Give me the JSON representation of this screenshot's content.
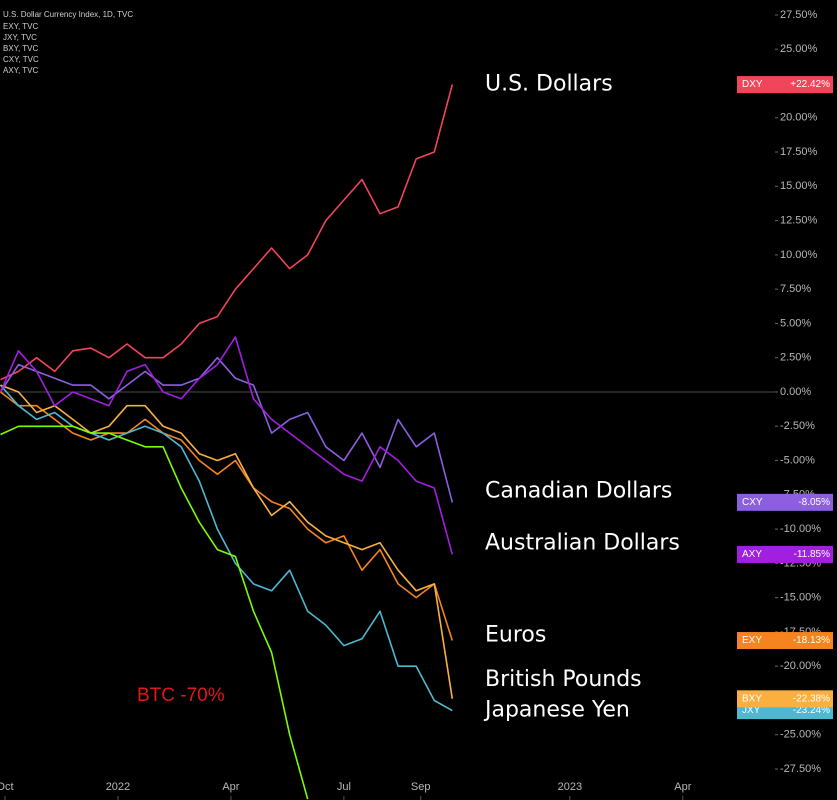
{
  "chart_data": {
    "type": "line",
    "annotation": "BTC -70%",
    "x": [
      2021.74,
      2021.78,
      2021.82,
      2021.86,
      2021.9,
      2021.94,
      2021.98,
      2022.02,
      2022.06,
      2022.1,
      2022.14,
      2022.18,
      2022.22,
      2022.26,
      2022.3,
      2022.34,
      2022.38,
      2022.42,
      2022.46,
      2022.5,
      2022.54,
      2022.58,
      2022.62,
      2022.66,
      2022.7,
      2022.74
    ],
    "xlim": [
      2021.739,
      2023.454
    ],
    "xticks": [
      {
        "value": 2021.75,
        "label": "Oct"
      },
      2022,
      {
        "value": 2022.25,
        "label": "Apr"
      },
      {
        "value": 2022.5,
        "label": "Jul"
      },
      {
        "value": 2022.67,
        "label": "Sep"
      },
      2023,
      {
        "value": 2023.25,
        "label": "Apr"
      }
    ],
    "ylim": [
      -29.76,
      28.59
    ],
    "yticks": [
      {
        "value": 27.5,
        "label": "27.50%"
      },
      {
        "value": 25,
        "label": "25.00%"
      },
      {
        "value": 22.5,
        "label": "22.50%"
      },
      {
        "value": 20,
        "label": "20.00%"
      },
      {
        "value": 17.5,
        "label": "17.50%"
      },
      {
        "value": 15,
        "label": "15.00%"
      },
      {
        "value": 12.5,
        "label": "12.50%"
      },
      {
        "value": 10,
        "label": "10.00%"
      },
      {
        "value": 7.5,
        "label": "7.50%"
      },
      {
        "value": 5,
        "label": "5.00%"
      },
      {
        "value": 2.5,
        "label": "2.50%"
      },
      {
        "value": 0,
        "label": "0.00%"
      },
      {
        "value": -2.5,
        "label": "-2.50%"
      },
      {
        "value": -5,
        "label": "-5.00%"
      },
      {
        "value": -7.5,
        "label": "-7.50%"
      },
      {
        "value": -10,
        "label": "-10.00%"
      },
      {
        "value": -12.5,
        "label": "-12.50%"
      },
      {
        "value": -15,
        "label": "-15.00%"
      },
      {
        "value": -17.5,
        "label": "-17.50%"
      },
      {
        "value": -20,
        "label": "-20.00%"
      },
      {
        "value": -22.5,
        "label": "-22.50%"
      },
      {
        "value": -25,
        "label": "-25.00%"
      },
      {
        "value": -27.5,
        "label": "-27.50%"
      }
    ],
    "grid": false,
    "series": [
      {
        "name": "U.S. Dollars",
        "symbol": "DXY",
        "legend": "U.S. Dollar Currency Index, 1D, TVC",
        "color": "#f2445a",
        "values": [
          0.9,
          1.5,
          2.5,
          1.5,
          3,
          3.2,
          2.5,
          3.5,
          2.5,
          2.5,
          3.5,
          5,
          5.5,
          7.5,
          9,
          10.5,
          9,
          10,
          12.5,
          14,
          15.5,
          13,
          13.5,
          17,
          17.5,
          22.42
        ],
        "value_labels": [
          null,
          null,
          null,
          null,
          null,
          null,
          null,
          null,
          null,
          null,
          null,
          null,
          null,
          null,
          null,
          null,
          null,
          null,
          null,
          null,
          null,
          null,
          null,
          null,
          null,
          "+22.42%"
        ]
      },
      {
        "name": "Euros",
        "symbol": "EXY",
        "legend": "EXY, TVC",
        "color": "#f5841f",
        "values": [
          0,
          -1,
          -1,
          -2,
          -3,
          -3.5,
          -3,
          -3,
          -2,
          -3,
          -3.5,
          -5,
          -6,
          -5,
          -7,
          -8,
          -8.5,
          -10,
          -11,
          -10.5,
          -13,
          -11.5,
          -14,
          -15,
          -14,
          -18.13
        ],
        "value_labels": [
          null,
          null,
          null,
          null,
          null,
          null,
          null,
          null,
          null,
          null,
          null,
          null,
          null,
          null,
          null,
          null,
          null,
          null,
          null,
          null,
          null,
          null,
          null,
          null,
          null,
          "-18.13%"
        ]
      },
      {
        "name": "Japanese Yen",
        "symbol": "JXY",
        "legend": "JXY, TVC",
        "color": "#4fb8d0",
        "values": [
          0.5,
          -1,
          -2,
          -1.5,
          -2.5,
          -3,
          -3.5,
          -3,
          -2.5,
          -3,
          -4,
          -6.5,
          -10,
          -12.5,
          -14,
          -14.5,
          -13,
          -16,
          -17,
          -18.5,
          -18,
          -16,
          -20,
          -20,
          -22.5,
          -23.24
        ],
        "value_labels": [
          null,
          null,
          null,
          null,
          null,
          null,
          null,
          null,
          null,
          null,
          null,
          null,
          null,
          null,
          null,
          null,
          null,
          null,
          null,
          null,
          null,
          null,
          null,
          null,
          null,
          "-23.24%"
        ]
      },
      {
        "name": "British Pounds",
        "symbol": "BXY",
        "legend": "BXY, TVC",
        "color": "#f9b040",
        "values": [
          0.5,
          0,
          -1.5,
          -1,
          -2,
          -3,
          -2.5,
          -1,
          -1,
          -2.5,
          -3,
          -4.5,
          -5,
          -4.5,
          -7,
          -9,
          -8,
          -9.5,
          -10.5,
          -11,
          -11.5,
          -11,
          -13,
          -14.5,
          -14,
          -22.38
        ],
        "value_labels": [
          null,
          null,
          null,
          null,
          null,
          null,
          null,
          null,
          null,
          null,
          null,
          null,
          null,
          null,
          null,
          null,
          null,
          null,
          null,
          null,
          null,
          null,
          null,
          null,
          null,
          "-22.38%"
        ]
      },
      {
        "name": "Canadian Dollars",
        "symbol": "CXY",
        "legend": "CXY, TVC",
        "color": "#8c5fe0",
        "values": [
          0,
          2,
          1.5,
          1,
          0.5,
          0.5,
          -0.5,
          0.5,
          1.5,
          0.5,
          0.5,
          1,
          2.5,
          1,
          0.5,
          -3,
          -2,
          -1.5,
          -4,
          -5,
          -3,
          -5.5,
          -2,
          -4,
          -3,
          -8.05
        ],
        "value_labels": [
          null,
          null,
          null,
          null,
          null,
          null,
          null,
          null,
          null,
          null,
          null,
          null,
          null,
          null,
          null,
          null,
          null,
          null,
          null,
          null,
          null,
          null,
          null,
          null,
          null,
          "-8.05%"
        ]
      },
      {
        "name": "Australian Dollars",
        "symbol": "AXY",
        "legend": "AXY, TVC",
        "color": "#a21fe0",
        "values": [
          0,
          3,
          1.5,
          -1,
          0,
          -0.5,
          -1,
          1.5,
          2,
          0,
          -0.5,
          1,
          2,
          4,
          -0.5,
          -2,
          -3,
          -4,
          -5,
          -6,
          -6.5,
          -4,
          -5,
          -6.5,
          -7,
          -11.85
        ],
        "value_labels": [
          null,
          null,
          null,
          null,
          null,
          null,
          null,
          null,
          null,
          null,
          null,
          null,
          null,
          null,
          null,
          null,
          null,
          null,
          null,
          null,
          null,
          null,
          null,
          null,
          null,
          "-11.85%"
        ]
      },
      {
        "color": "#7cfc00",
        "values": [
          -3.1,
          -2.5,
          -2.5,
          -2.5,
          -2.5,
          -3,
          -3,
          -3.5,
          -4,
          -4,
          -7,
          -9.5,
          -11.5,
          -12,
          -16,
          -19,
          -25,
          -29.7,
          null,
          null,
          null,
          null,
          null,
          null,
          null,
          null
        ]
      }
    ]
  }
}
